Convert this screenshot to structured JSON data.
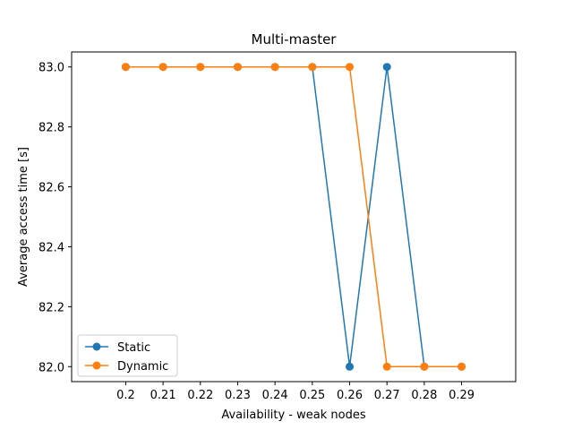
{
  "chart_data": {
    "type": "line",
    "title": "Multi-master",
    "xlabel": "Availability - weak nodes",
    "ylabel": "Average access time [s]",
    "x": [
      0.2,
      0.21,
      0.22,
      0.23,
      0.24,
      0.25,
      0.26,
      0.27,
      0.28,
      0.29
    ],
    "x_tick_labels": [
      "0.2",
      "0.21",
      "0.22",
      "0.23",
      "0.24",
      "0.25",
      "0.26",
      "0.27",
      "0.28",
      "0.29"
    ],
    "xlim": [
      0.1855,
      0.3045
    ],
    "ylim": [
      81.95,
      83.05
    ],
    "y_ticks": [
      82.0,
      82.2,
      82.4,
      82.6,
      82.8,
      83.0
    ],
    "y_tick_labels": [
      "82.0",
      "82.2",
      "82.4",
      "82.6",
      "82.8",
      "83.0"
    ],
    "grid": false,
    "legend_position": "lower-left",
    "series": [
      {
        "name": "Static",
        "color": "#1f77b4",
        "marker": "circle",
        "values": [
          83.0,
          83.0,
          83.0,
          83.0,
          83.0,
          83.0,
          82.0,
          83.0,
          82.0,
          82.0
        ]
      },
      {
        "name": "Dynamic",
        "color": "#ff7f0e",
        "marker": "circle",
        "values": [
          83.0,
          83.0,
          83.0,
          83.0,
          83.0,
          83.0,
          83.0,
          82.0,
          82.0,
          82.0
        ]
      }
    ]
  }
}
